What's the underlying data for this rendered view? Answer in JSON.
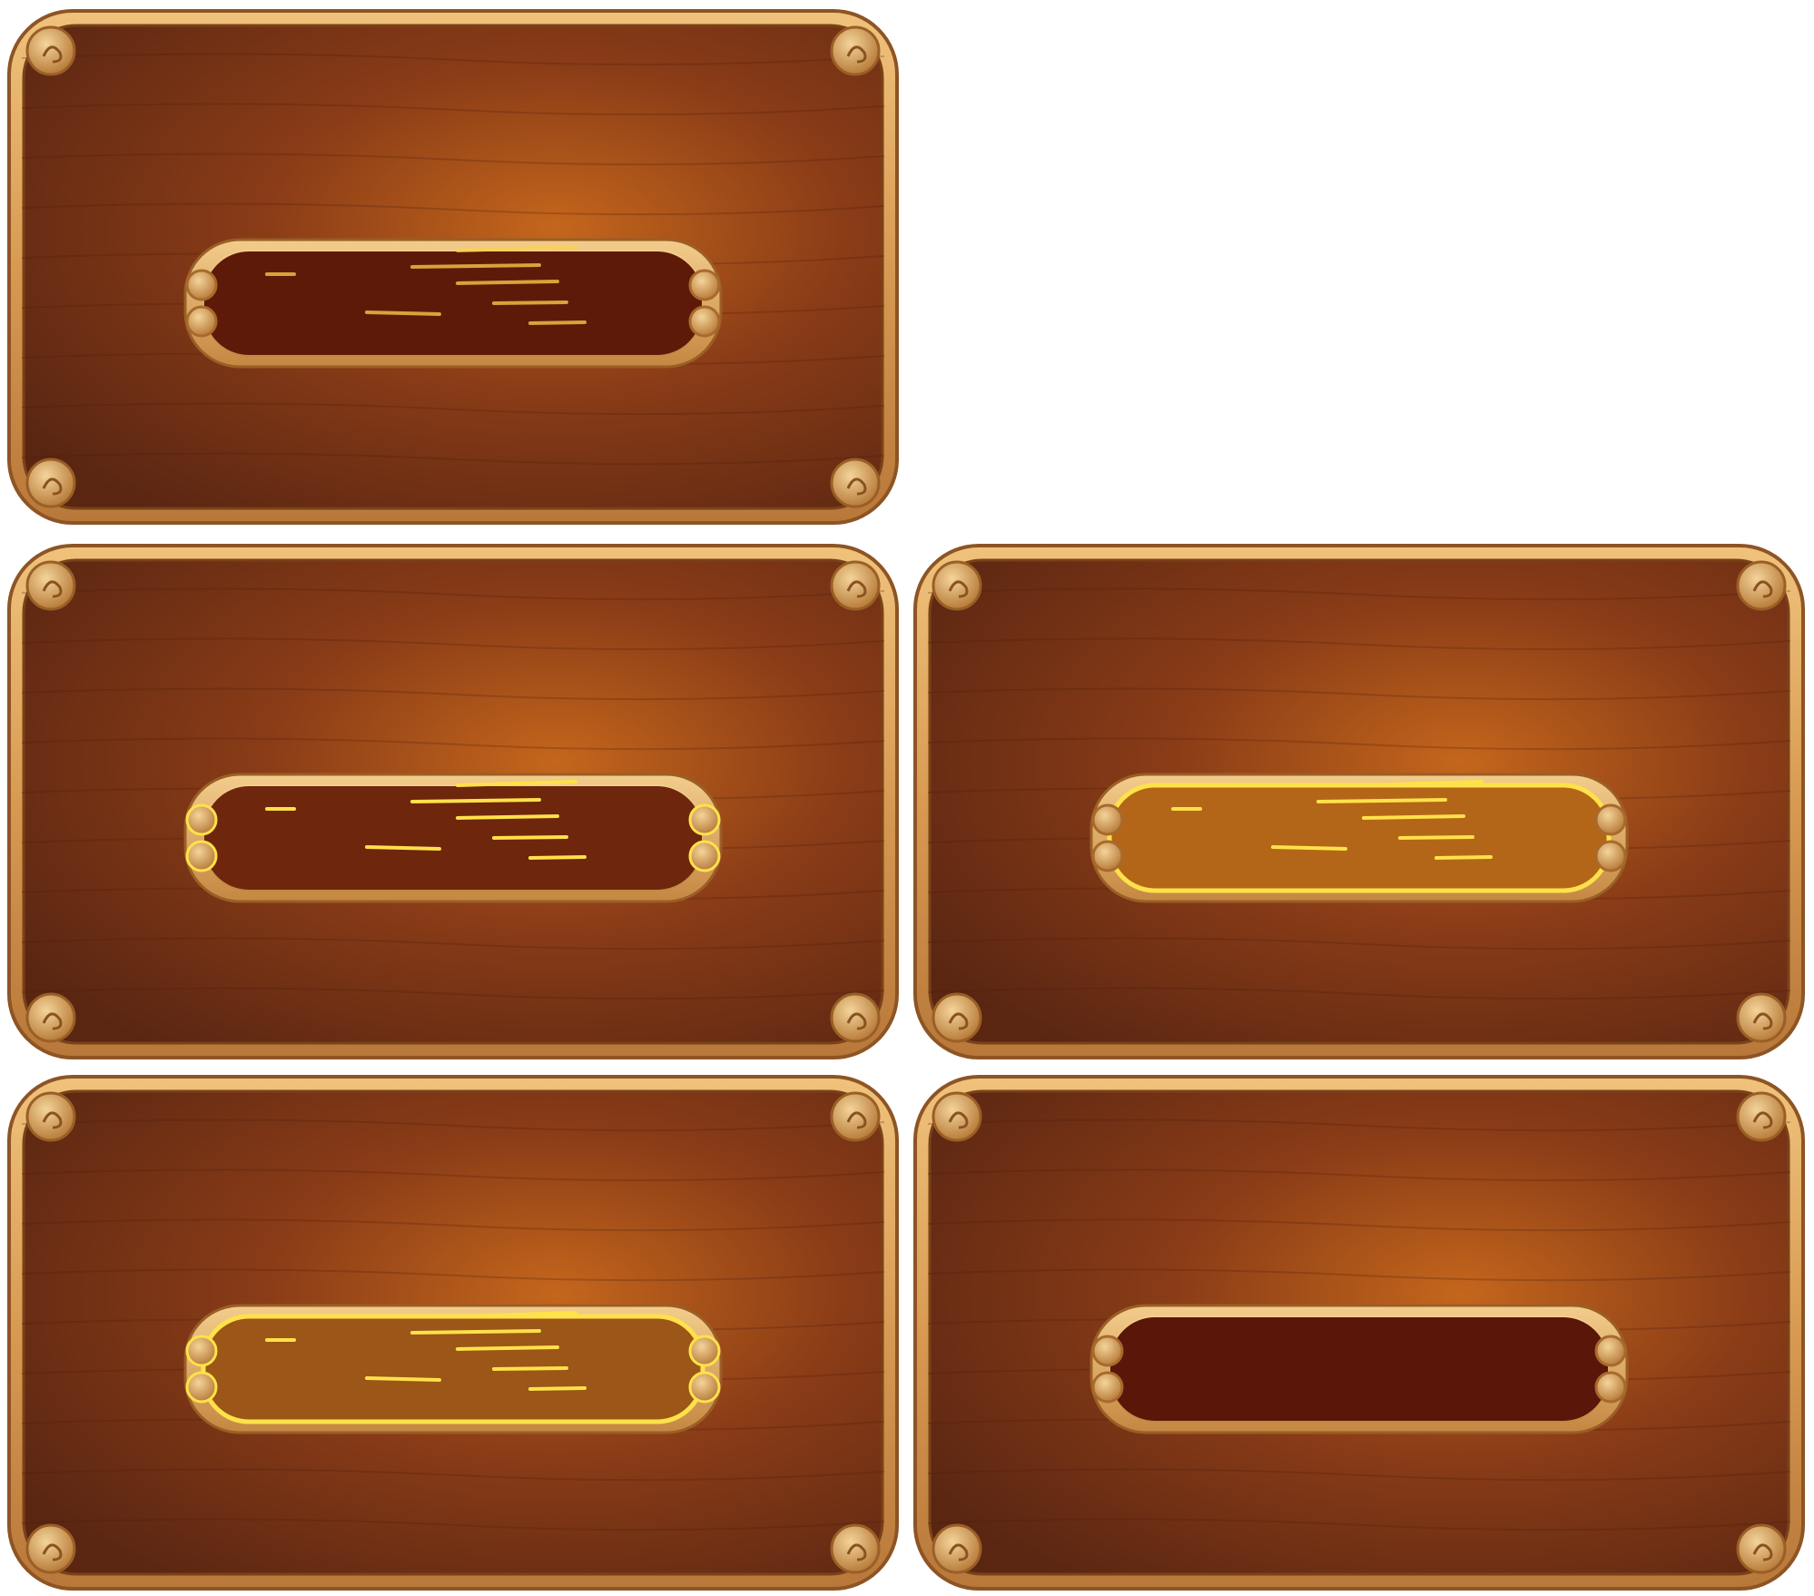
{
  "sheet": {
    "panels": [
      {
        "id": "panel-1",
        "state": "idle",
        "slot_fill": "#5e1a08",
        "streaks": "faint"
      },
      {
        "id": "panel-2",
        "state": "highlighted-streaks",
        "slot_fill": "#6e260c",
        "streaks": "bright"
      },
      {
        "id": "panel-3",
        "state": "glowing",
        "slot_fill": "#b36618",
        "streaks": "bright"
      },
      {
        "id": "panel-4",
        "state": "glowing-swirls",
        "slot_fill": "#9c5617",
        "streaks": "bright"
      },
      {
        "id": "panel-5",
        "state": "empty",
        "slot_fill": "#5a1608",
        "streaks": "none"
      }
    ],
    "colors": {
      "frame_light": "#e9b870",
      "frame_dark": "#a86a2c",
      "board_center": "#c4661c",
      "board_edge": "#5a2612",
      "glow": "#ffe14a"
    }
  }
}
